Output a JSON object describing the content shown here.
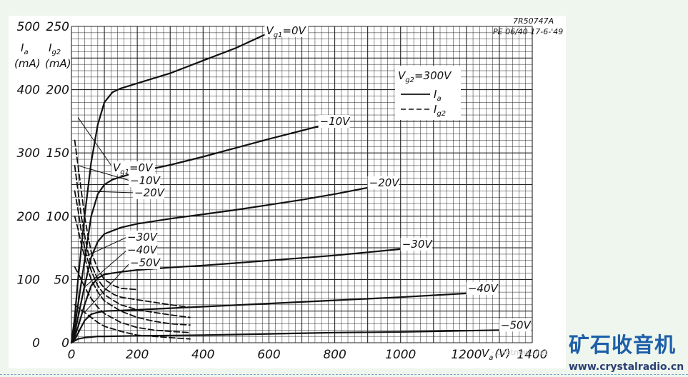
{
  "chart_data": {
    "type": "line",
    "reference": [
      "7R50747A",
      "PE 06/40 17-6-'49"
    ],
    "xlabel": "V",
    "xlabel_sub": "a",
    "xlabel_unit": "(V)",
    "xlim": [
      0,
      1400
    ],
    "x_ticks": [
      "0",
      "200",
      "400",
      "600",
      "800",
      "1000",
      "1200",
      "1400"
    ],
    "left_axis": {
      "label": "I",
      "label_sub": "a",
      "unit": "(mA)",
      "ylim": [
        0,
        500
      ],
      "ticks": [
        "0",
        "100",
        "200",
        "300",
        "400",
        "500"
      ]
    },
    "right_axis": {
      "label": "I",
      "label_sub": "g2",
      "unit": "(mA)",
      "ylim": [
        0,
        250
      ],
      "ticks": [
        "0",
        "50",
        "100",
        "150",
        "200",
        "250"
      ]
    },
    "condition": {
      "label": "V",
      "sub": "g2",
      "value": "=300V"
    },
    "legend": [
      {
        "style": "solid",
        "label": "I",
        "sub": "a"
      },
      {
        "style": "dashed",
        "label": "I",
        "sub": "g2"
      }
    ],
    "anode_series": [
      {
        "name": "=0V",
        "name_sub": "g1",
        "name_prefix": "V",
        "x": [
          0,
          10,
          20,
          40,
          60,
          80,
          100,
          125,
          150,
          200,
          300,
          400,
          500,
          600
        ],
        "y": [
          0,
          40,
          100,
          200,
          285,
          345,
          380,
          396,
          402,
          410,
          426,
          446,
          466,
          490
        ]
      },
      {
        "name": "−10V",
        "x": [
          0,
          10,
          20,
          40,
          60,
          80,
          100,
          125,
          150,
          200,
          300,
          400,
          500,
          600,
          750
        ],
        "y": [
          0,
          25,
          60,
          130,
          200,
          235,
          250,
          258,
          262,
          270,
          281,
          294,
          308,
          322,
          342
        ]
      },
      {
        "name": "−20V",
        "x": [
          0,
          10,
          20,
          40,
          60,
          80,
          100,
          150,
          200,
          300,
          400,
          500,
          600,
          700,
          800,
          900
        ],
        "y": [
          0,
          15,
          40,
          90,
          135,
          160,
          172,
          182,
          188,
          196,
          203,
          210,
          218,
          226,
          235,
          245
        ]
      },
      {
        "name": "−30V",
        "x": [
          0,
          10,
          20,
          40,
          60,
          80,
          100,
          150,
          200,
          300,
          400,
          500,
          600,
          700,
          800,
          900,
          1000
        ],
        "y": [
          0,
          10,
          25,
          60,
          90,
          102,
          108,
          112,
          115,
          119,
          122,
          126,
          130,
          134,
          138,
          143,
          148
        ]
      },
      {
        "name": "−40V",
        "x": [
          0,
          10,
          20,
          40,
          60,
          80,
          100,
          150,
          200,
          400,
          600,
          800,
          1000,
          1200
        ],
        "y": [
          0,
          5,
          15,
          35,
          45,
          48,
          50,
          51,
          52,
          57,
          62,
          67,
          72,
          78
        ]
      },
      {
        "name": "−50V",
        "x": [
          0,
          10,
          20,
          40,
          60,
          80,
          100,
          200,
          400,
          600,
          800,
          1000,
          1200,
          1300
        ],
        "y": [
          0,
          3,
          6,
          8,
          9,
          10,
          10,
          11,
          12,
          14,
          16,
          17,
          19,
          20
        ]
      }
    ],
    "screen_series": [
      {
        "name": "=0V",
        "name_sub": "g1",
        "name_prefix": "V",
        "x": [
          10,
          20,
          30,
          40,
          50,
          60,
          80,
          100,
          130,
          150,
          200
        ],
        "y": [
          160,
          140,
          120,
          100,
          85,
          72,
          58,
          50,
          45,
          43,
          42
        ]
      },
      {
        "name": "−10V",
        "x": [
          10,
          20,
          30,
          40,
          50,
          60,
          80,
          100,
          130,
          150,
          200,
          250,
          300,
          360
        ],
        "y": [
          140,
          120,
          100,
          85,
          72,
          62,
          50,
          43,
          38,
          36,
          34,
          32,
          30,
          28
        ]
      },
      {
        "name": "−20V",
        "x": [
          10,
          20,
          30,
          40,
          50,
          60,
          80,
          100,
          130,
          150,
          200,
          250,
          300,
          360
        ],
        "y": [
          120,
          105,
          88,
          75,
          65,
          57,
          45,
          38,
          33,
          30,
          26,
          24,
          22,
          20
        ]
      },
      {
        "name": "−30V",
        "x": [
          10,
          20,
          30,
          40,
          50,
          60,
          80,
          100,
          150,
          200,
          250,
          300,
          360
        ],
        "y": [
          100,
          90,
          78,
          68,
          58,
          50,
          40,
          33,
          25,
          20,
          17,
          15,
          14
        ]
      },
      {
        "name": "−40V",
        "x": [
          10,
          20,
          30,
          40,
          60,
          80,
          100,
          150,
          200,
          250,
          300,
          360
        ],
        "y": [
          60,
          55,
          50,
          44,
          35,
          28,
          23,
          16,
          12,
          10,
          9,
          8
        ]
      },
      {
        "name": "−50V",
        "x": [
          10,
          20,
          40,
          60,
          80,
          100,
          150,
          200,
          250,
          300,
          360
        ],
        "y": [
          30,
          28,
          24,
          20,
          16,
          13,
          9,
          6,
          5,
          4,
          3
        ]
      }
    ],
    "grid": true
  },
  "watermark": "·.cnetnew·.net",
  "brand": {
    "logo_text": "矿石收音机",
    "site_url": "www.crystalradio.cn"
  },
  "colors": {
    "background": "#eef6ee",
    "paper": "#ffffff",
    "ink": "#111111",
    "brand": "#1d5fa8"
  }
}
